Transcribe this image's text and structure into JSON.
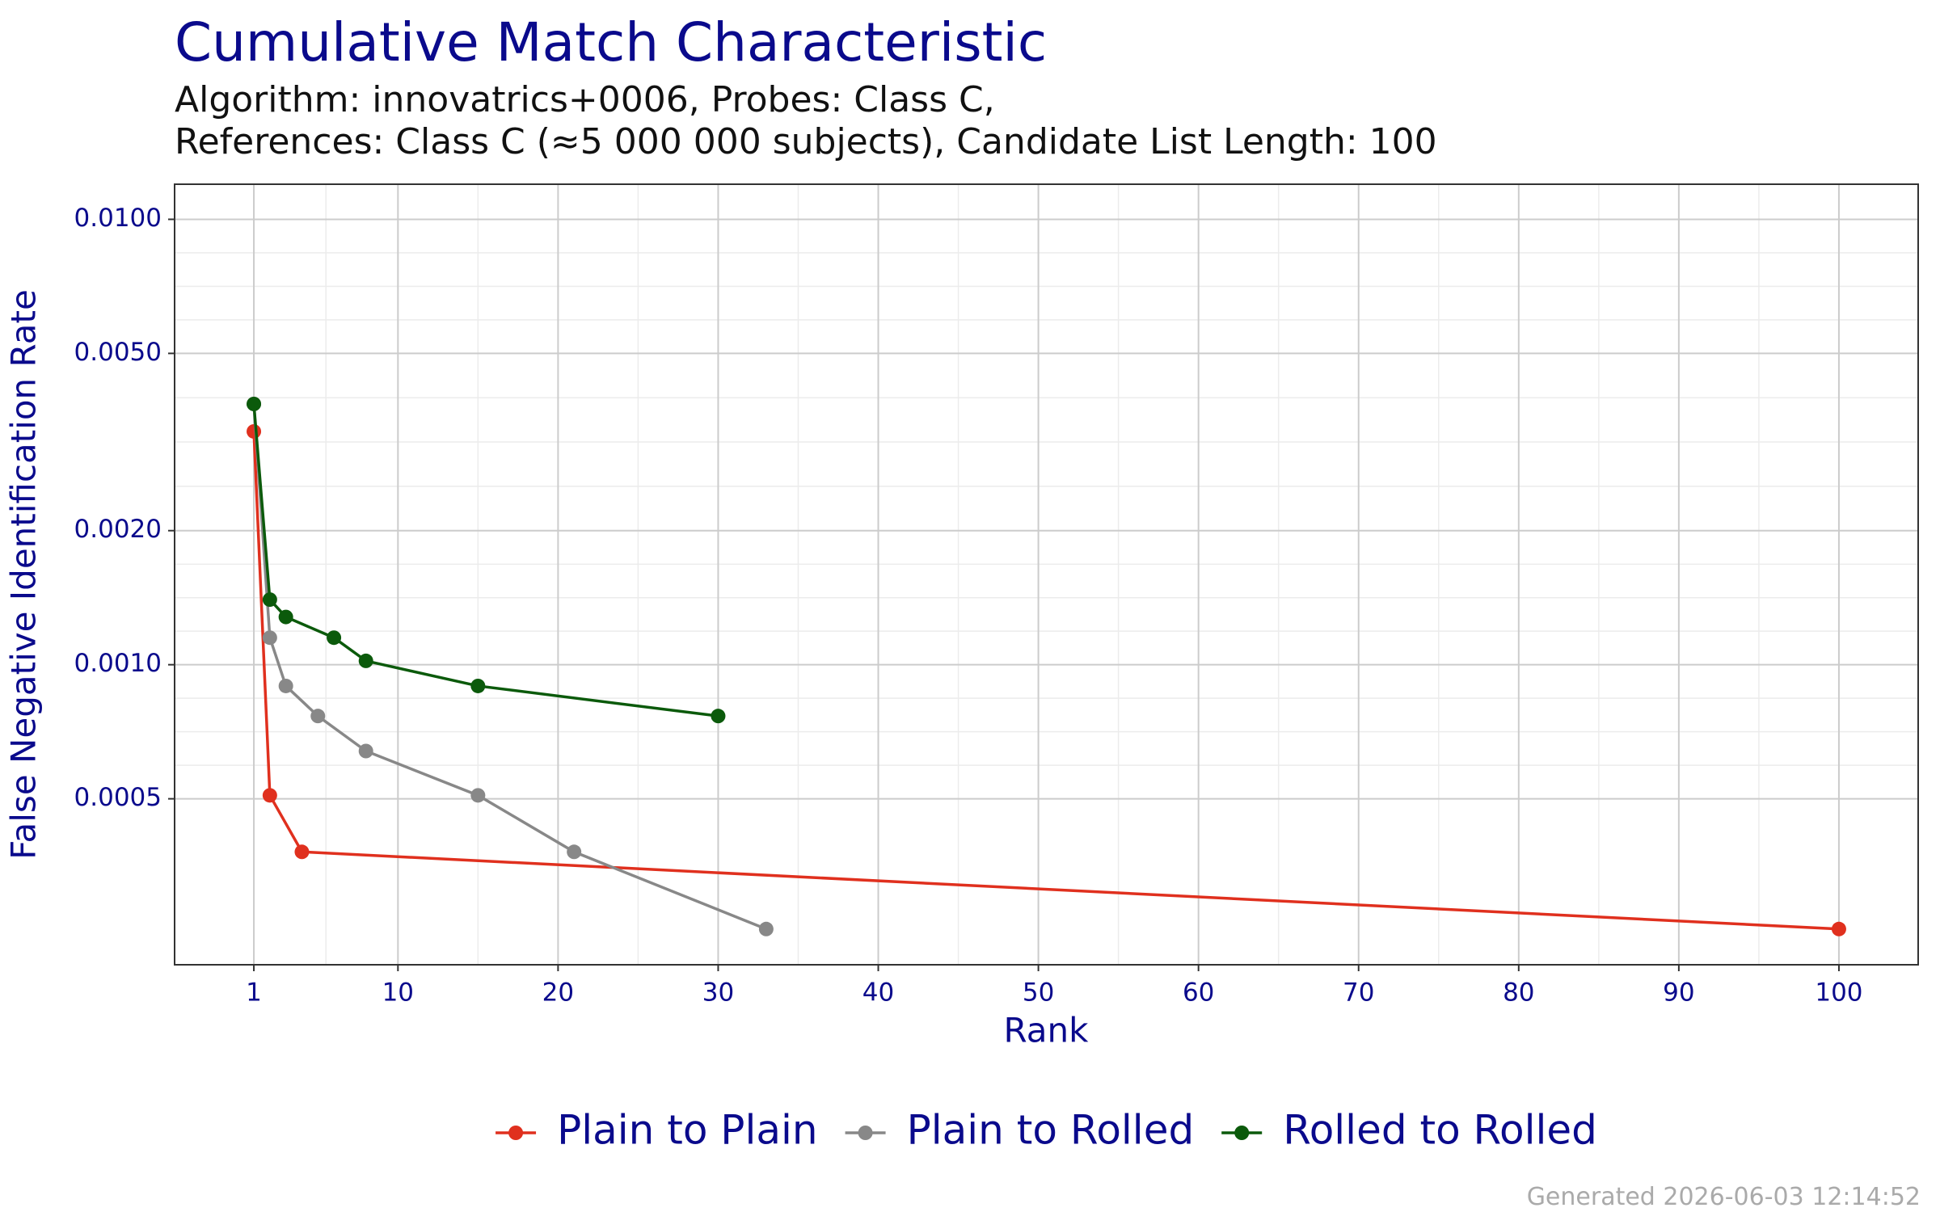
{
  "chart_data": {
    "type": "line",
    "title": "Cumulative Match Characteristic",
    "subtitle": [
      "Algorithm: innovatrics+0006, Probes: Class C,",
      "References: Class C (≈5 000 000 subjects), Candidate List Length: 100"
    ],
    "x_label": "Rank",
    "y_label": "False Negative Identification Rate",
    "footer": "Generated 2026-06-03 12:14:52",
    "log_y": true,
    "grid": true,
    "legend": "bottom",
    "xlim": [
      -3.95,
      104.95
    ],
    "xticks": [
      1,
      10,
      20,
      30,
      40,
      50,
      60,
      70,
      80,
      90,
      100
    ],
    "ylim": [
      0.000212,
      0.01199
    ],
    "yticks": [
      0.0005,
      {
        "value": 0.001,
        "label": "0.0010"
      },
      {
        "value": 0.002,
        "label": "0.0020"
      },
      {
        "value": 0.005,
        "label": "0.0050"
      },
      {
        "value": 0.01,
        "label": "0.0100"
      }
    ],
    "series": [
      {
        "name": "Plain to Plain",
        "color": "#e0301e",
        "x": [
          1,
          2,
          4,
          100
        ],
        "values": [
          0.00334,
          0.000509,
          0.00038,
          0.000255
        ]
      },
      {
        "name": "Plain to Rolled",
        "color": "#888888",
        "x": [
          1,
          2,
          3,
          5,
          8,
          15,
          21,
          33
        ],
        "values": [
          0.00385,
          0.00115,
          0.000896,
          0.000767,
          0.00064,
          0.000509,
          0.00038,
          0.000255
        ]
      },
      {
        "name": "Rolled to Rolled",
        "color": "#0b5a0b",
        "x": [
          1,
          2,
          3,
          6,
          8,
          15,
          30
        ],
        "values": [
          0.00385,
          0.0014,
          0.00128,
          0.00115,
          0.00102,
          0.000896,
          0.000767
        ]
      }
    ]
  }
}
